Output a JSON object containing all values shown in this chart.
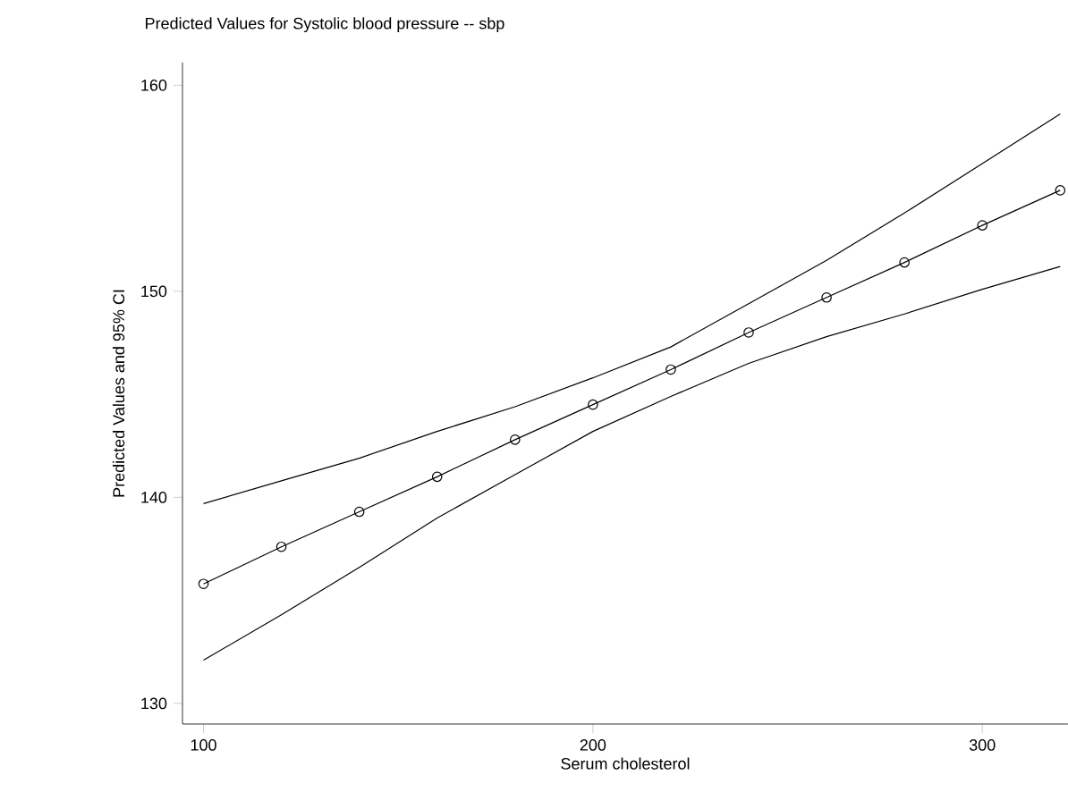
{
  "chart_data": {
    "type": "line",
    "title": "Predicted Values for Systolic blood pressure -- sbp",
    "xlabel": "Serum cholesterol",
    "ylabel": "Predicted Values and 95% CI",
    "x": [
      100,
      120,
      140,
      160,
      180,
      200,
      220,
      240,
      260,
      280,
      300,
      320
    ],
    "series": [
      {
        "color": "#000000",
        "marker": "circle",
        "values": [
          135.8,
          137.6,
          139.3,
          141.0,
          142.8,
          144.5,
          146.2,
          148.0,
          149.7,
          151.4,
          153.2,
          154.9
        ]
      },
      {
        "color": "#000000",
        "marker": "none",
        "values": [
          139.7,
          140.8,
          141.9,
          143.2,
          144.4,
          145.8,
          147.3,
          149.4,
          151.5,
          153.8,
          156.2,
          158.6
        ]
      },
      {
        "color": "#000000",
        "marker": "none",
        "values": [
          132.1,
          134.3,
          136.6,
          139.0,
          141.1,
          143.2,
          144.9,
          146.5,
          147.8,
          148.9,
          150.1,
          151.2
        ]
      }
    ],
    "xlim": [
      94.6,
      322
    ],
    "ylim": [
      129,
      161.1
    ],
    "xticks": [
      100,
      200,
      300
    ],
    "yticks": [
      130,
      140,
      150,
      160
    ]
  }
}
